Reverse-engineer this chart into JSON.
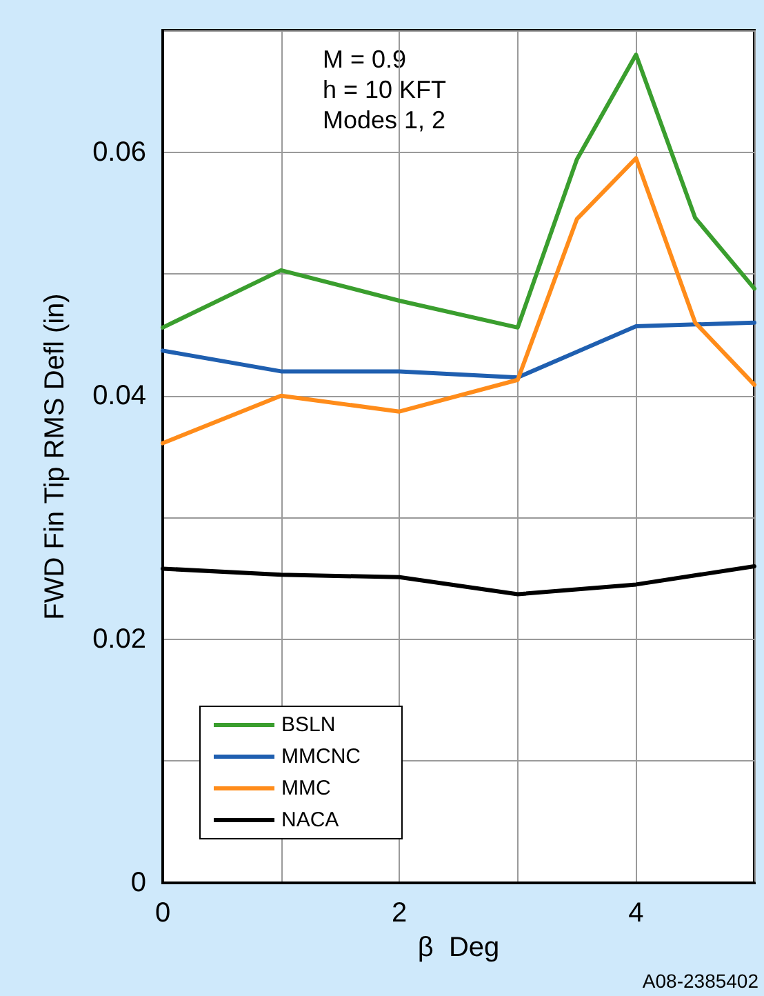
{
  "chart_data": {
    "type": "line",
    "xlabel": "β  Deg",
    "ylabel": "FWD Fin Tip RMS Defl (in)",
    "annotations": [
      "M = 0.9",
      "h = 10 KFT",
      "Modes 1, 2",
      "A08-2385402"
    ],
    "series": [
      {
        "name": "BSLN",
        "color": "#3a9e2e",
        "x": [
          0,
          1,
          2,
          3,
          3.5,
          4,
          4.5,
          5
        ],
        "values": [
          0.0456,
          0.0503,
          0.0478,
          0.0456,
          0.0594,
          0.068,
          0.0546,
          0.0488
        ]
      },
      {
        "name": "MMCNC",
        "color": "#1f5fb0",
        "x": [
          0,
          1,
          2,
          3,
          4,
          5
        ],
        "values": [
          0.0437,
          0.042,
          0.042,
          0.0415,
          0.0457,
          0.046
        ]
      },
      {
        "name": "MMC",
        "color": "#ff8c1a",
        "x": [
          0,
          1,
          2,
          3,
          3.5,
          4,
          4.5,
          5
        ],
        "values": [
          0.0361,
          0.04,
          0.0387,
          0.0413,
          0.0545,
          0.0595,
          0.046,
          0.0409
        ]
      },
      {
        "name": "NACA",
        "color": "#000000",
        "x": [
          0,
          1,
          2,
          3,
          4,
          5
        ],
        "values": [
          0.0258,
          0.0253,
          0.0251,
          0.0237,
          0.0245,
          0.026
        ]
      }
    ],
    "xlim": [
      0,
      5
    ],
    "xticks": [
      0,
      {
        "value": 1,
        "label": null
      },
      2,
      {
        "value": 3,
        "label": null
      },
      4,
      {
        "value": 5,
        "label": null
      }
    ],
    "ylim": [
      0,
      0.07
    ],
    "yticks": [
      0,
      {
        "value": 0.01,
        "label": null
      },
      0.02,
      {
        "value": 0.03,
        "label": null
      },
      0.04,
      {
        "value": 0.05,
        "label": null
      },
      0.06,
      {
        "value": 0.07,
        "label": null
      }
    ],
    "grid": true,
    "legend": "bottom left",
    "marker": "none",
    "line_style": "solid"
  }
}
